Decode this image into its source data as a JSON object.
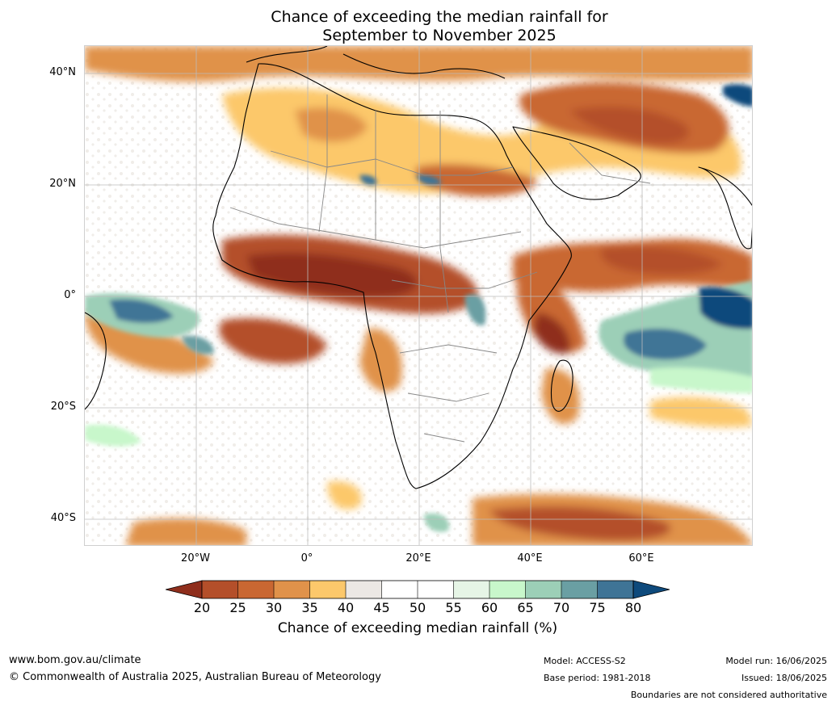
{
  "title": {
    "line1": "Chance of exceeding the median rainfall for",
    "line2": "September to November 2025"
  },
  "map": {
    "region": "Africa and surrounding oceans",
    "lat_labels": [
      "40°N",
      "20°N",
      "0°",
      "20°S",
      "40°S"
    ],
    "lon_labels": [
      "20°W",
      "0°",
      "20°E",
      "40°E",
      "60°E"
    ],
    "colors": {
      "20": "#8f2e1c",
      "25": "#b44f2a",
      "30": "#c96732",
      "35": "#e0924a",
      "40": "#fcc86b",
      "45": "#ece8e4",
      "50": "#ffffff",
      "55": "#ffffff",
      "60": "#e6f5e6",
      "65": "#c8f7cb",
      "70": "#9ccfb7",
      "75": "#6a9fa3",
      "80": "#3f7496",
      "over": "#0e4a7c",
      "land_outline": "#000000",
      "borders": "#888888",
      "grid": "#bbbbbb"
    }
  },
  "colorbar": {
    "ticks": [
      "20",
      "25",
      "30",
      "35",
      "40",
      "45",
      "50",
      "55",
      "60",
      "65",
      "70",
      "75",
      "80"
    ],
    "label": "Chance of exceeding median rainfall (%)"
  },
  "footer": {
    "website": "www.bom.gov.au/climate",
    "copyright": "© Commonwealth of Australia 2025, Australian Bureau of Meteorology",
    "model": "Model: ACCESS-S2",
    "base_period": "Base period: 1981-2018",
    "model_run": "Model run: 16/06/2025",
    "issued": "Issued: 18/06/2025",
    "disclaimer": "Boundaries are not considered authoritative"
  }
}
